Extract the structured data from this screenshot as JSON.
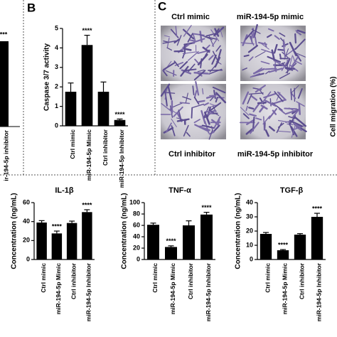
{
  "panels": {
    "b": "B",
    "c": "C"
  },
  "fragments": {
    "left_annotation": "***",
    "left_category": "ir-194-5p inhibitor",
    "right_ylabel": "Cell migration (%)"
  },
  "images": {
    "captions": [
      "Ctrl mimic",
      "miR-194-5p mimic",
      "Ctrl inhibitor",
      "miR-194-5p  inhibitor"
    ]
  },
  "chart_data": [
    {
      "type": "bar",
      "ylabel": "Caspase 3/7 activity",
      "categories": [
        "Ctrl mimic",
        "miR-194-5p Mimic",
        "Ctrl inhibitor",
        "miR-194-5p Inhibitor"
      ],
      "values": [
        1.75,
        4.15,
        1.75,
        0.3
      ],
      "errors": [
        0.45,
        0.5,
        0.5,
        0.05
      ],
      "annotations": [
        null,
        "****",
        null,
        "****"
      ],
      "color": "#000000",
      "ylim": [
        0,
        5
      ],
      "yticks": [
        0,
        1,
        2,
        3,
        4,
        5
      ]
    },
    {
      "type": "bar",
      "title": "IL-1β",
      "ylabel": "Concentration (ng/mL)",
      "categories": [
        "Ctrl mimic",
        "miR-194-5p Mimic",
        "Ctrl inhibitor",
        "miR-194-5p Inhibitor"
      ],
      "values": [
        39,
        27.5,
        38.5,
        50
      ],
      "errors": [
        2,
        2.5,
        2,
        2.5
      ],
      "annotations": [
        null,
        "****",
        null,
        "****"
      ],
      "color": "#000000",
      "ylim": [
        0,
        60
      ],
      "yticks": [
        0,
        20,
        40,
        60
      ]
    },
    {
      "type": "bar",
      "title": "TNF-α",
      "ylabel": "Concentration (ng/mL)",
      "categories": [
        "Ctrl mimic",
        "miR-194-5p Mimic",
        "Ctrl inhibitor",
        "miR-194-5p Inhibitor"
      ],
      "values": [
        61,
        22,
        60,
        79
      ],
      "errors": [
        3,
        2,
        8,
        4
      ],
      "annotations": [
        null,
        "****",
        null,
        "****"
      ],
      "color": "#000000",
      "ylim": [
        0,
        100
      ],
      "yticks": [
        0,
        20,
        40,
        60,
        80,
        100
      ]
    },
    {
      "type": "bar",
      "title": "TGF-β",
      "ylabel": "Concentration (ng/mL)",
      "categories": [
        "Ctrl mimic",
        "miR-194-5p Mimic",
        "Ctrl inhibitor",
        "miR-194-5p Inhibitor"
      ],
      "values": [
        18,
        6.5,
        17.5,
        30
      ],
      "errors": [
        1,
        0.5,
        0.7,
        2.5
      ],
      "annotations": [
        null,
        "****",
        null,
        "****"
      ],
      "color": "#000000",
      "ylim": [
        0,
        40
      ],
      "yticks": [
        0,
        10,
        20,
        30,
        40
      ]
    }
  ]
}
